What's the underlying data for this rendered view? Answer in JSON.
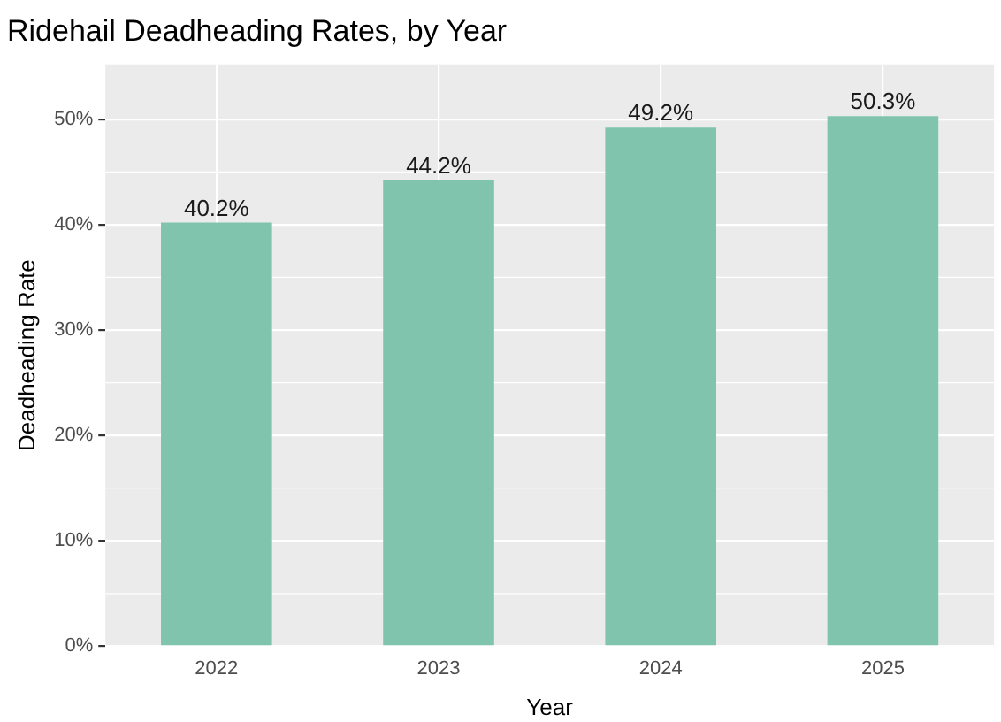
{
  "chart_data": {
    "type": "bar",
    "title": "Ridehail Deadheading Rates, by Year",
    "xlabel": "Year",
    "ylabel": "Deadheading Rate",
    "categories": [
      "2022",
      "2023",
      "2024",
      "2025"
    ],
    "values": [
      40.2,
      44.2,
      49.2,
      50.3
    ],
    "value_labels": [
      "40.2%",
      "44.2%",
      "49.2%",
      "50.3%"
    ],
    "color": "#80c4ad",
    "ylim": [
      0,
      55.2
    ],
    "yticks": [
      {
        "value": 0,
        "label": "0%"
      },
      {
        "value": 10,
        "label": "10%"
      },
      {
        "value": 20,
        "label": "20%"
      },
      {
        "value": 30,
        "label": "30%"
      },
      {
        "value": 40,
        "label": "40%"
      },
      {
        "value": 50,
        "label": "50%"
      }
    ],
    "grid": true,
    "legend": false
  }
}
